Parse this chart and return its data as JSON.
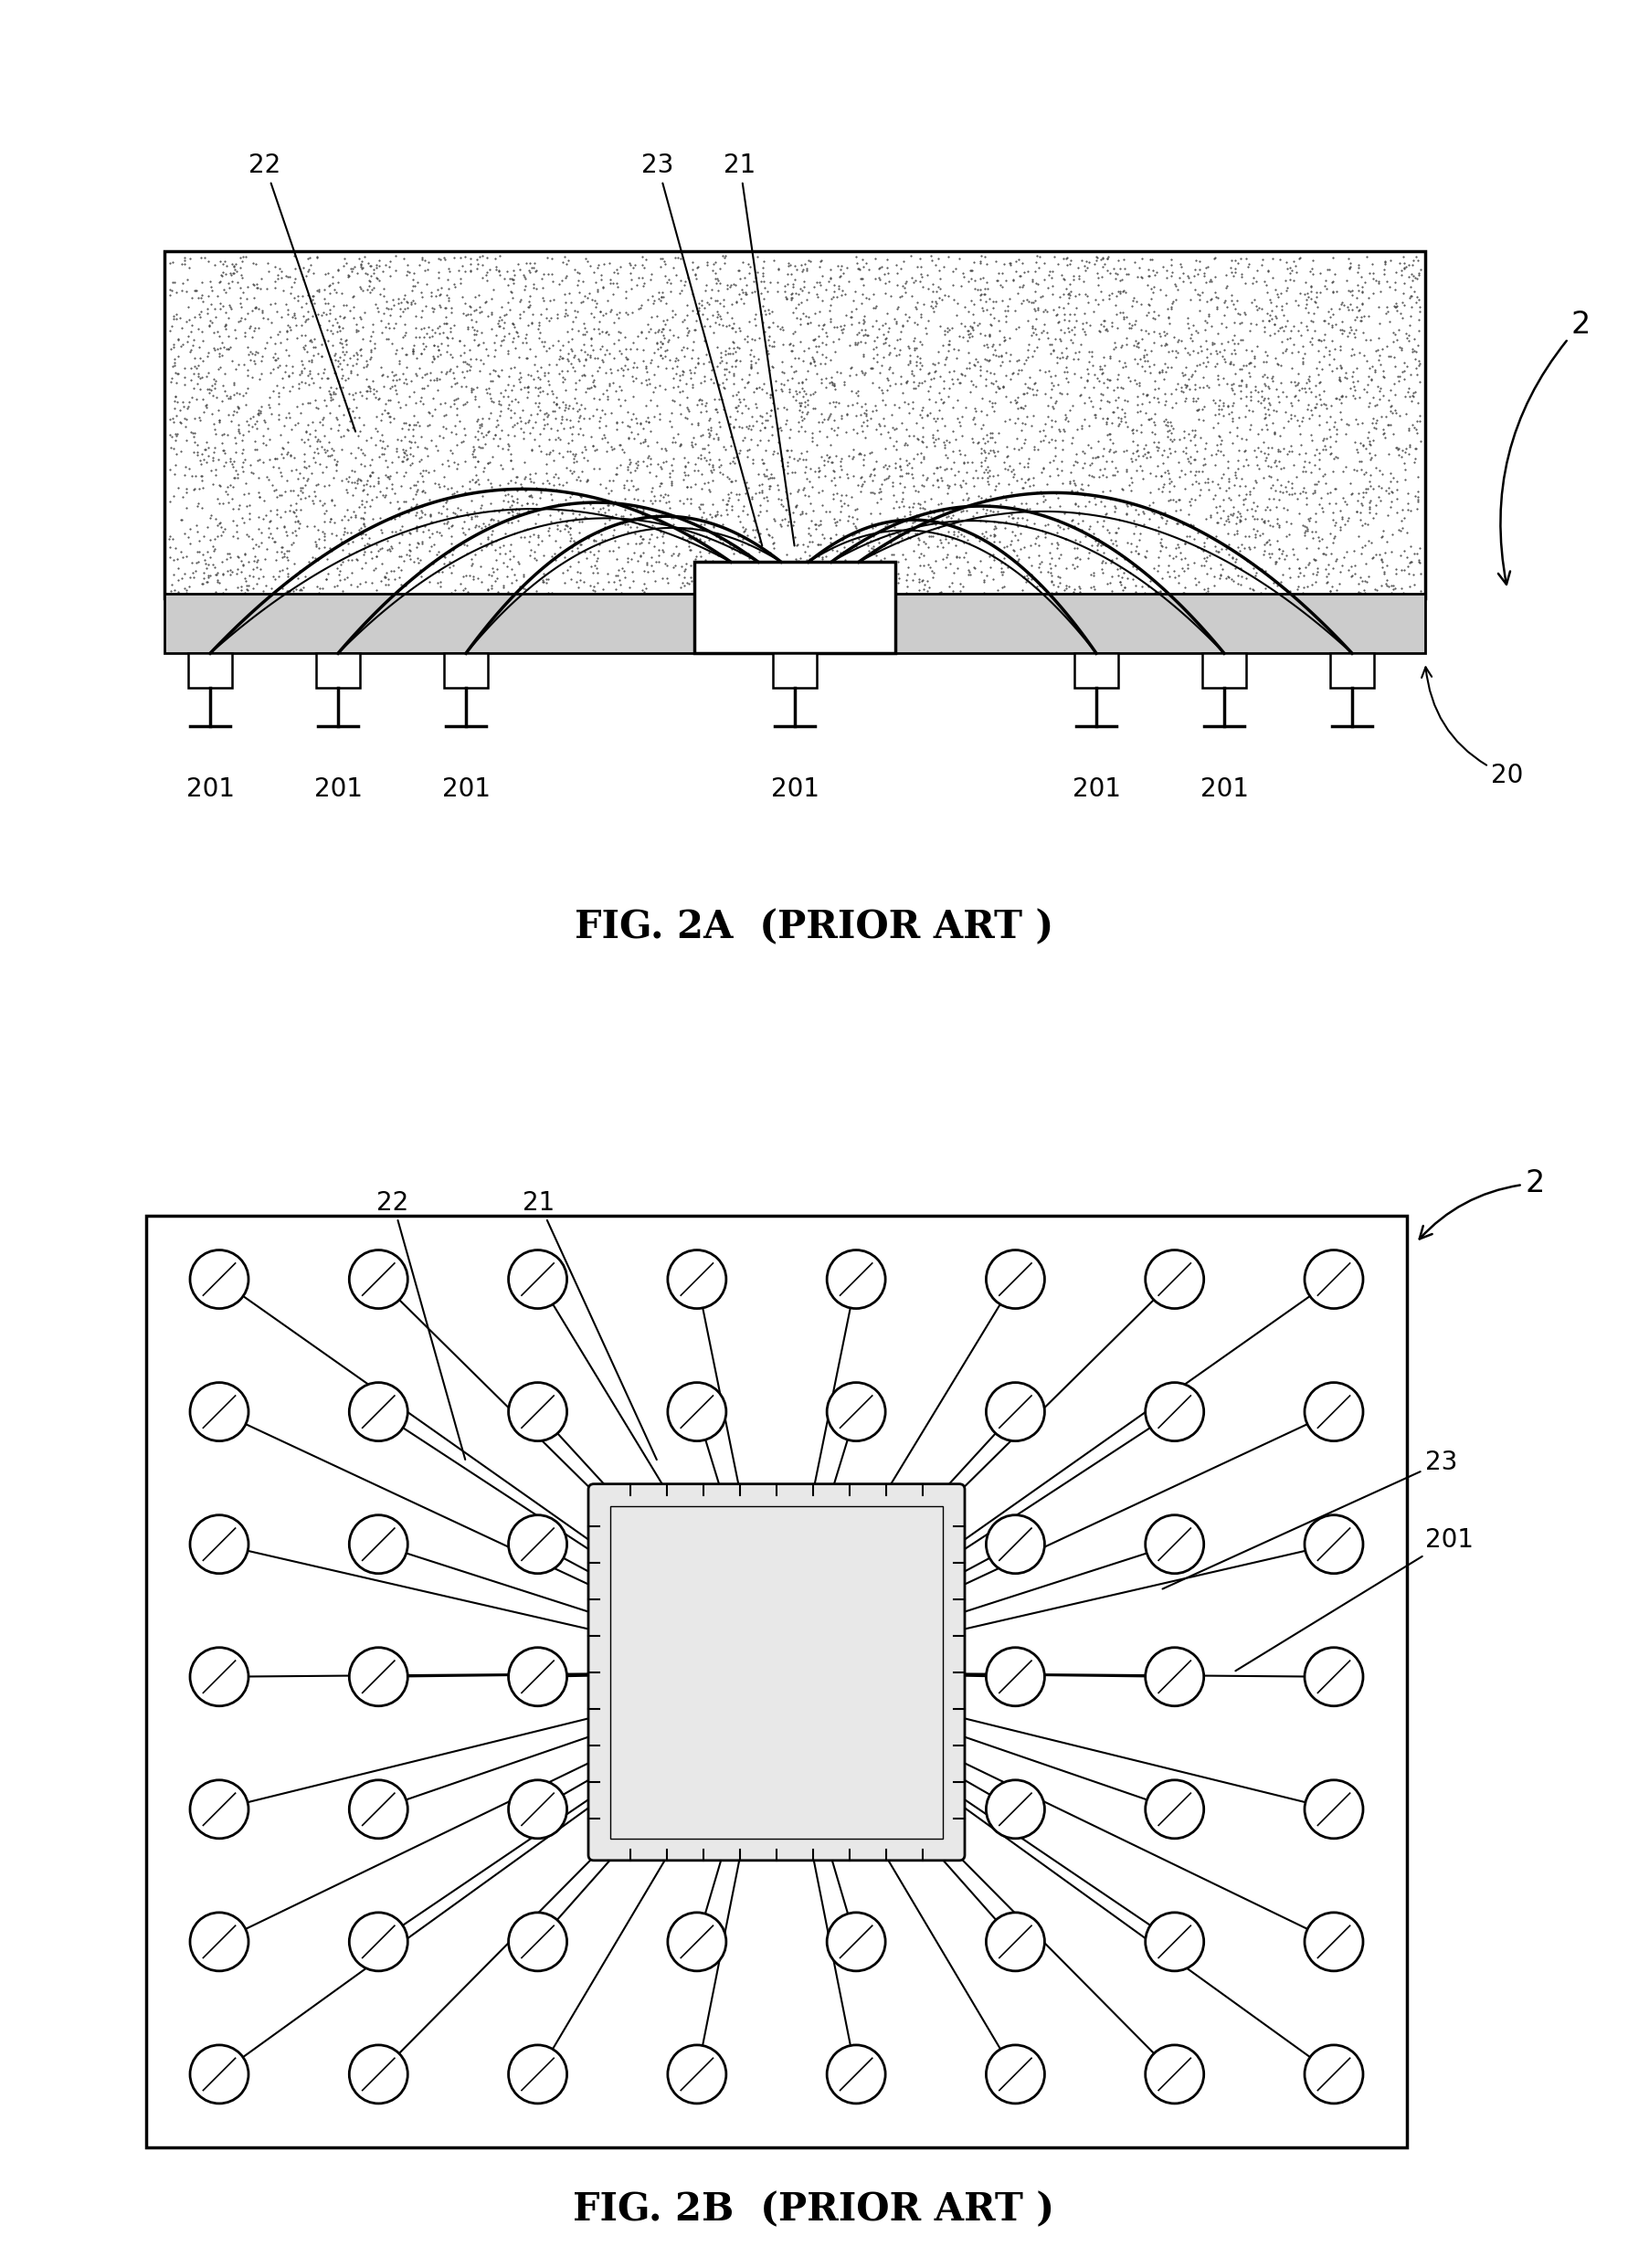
{
  "background_color": "#ffffff",
  "fig2a_title": "FIG. 2A  (PRIOR ART )",
  "fig2b_title": "FIG. 2B  (PRIOR ART )",
  "label_fs": 20,
  "title_fs": 30
}
